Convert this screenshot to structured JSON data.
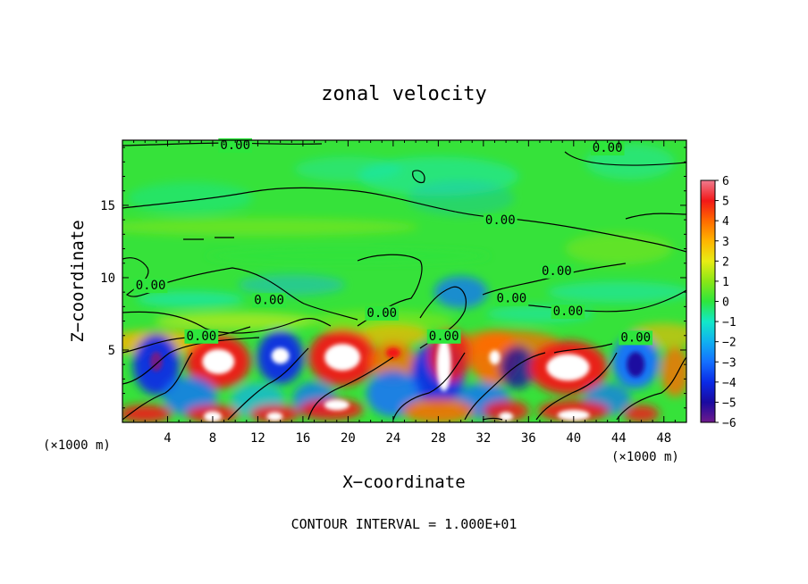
{
  "chart_data": {
    "type": "heatmap",
    "title": "zonal velocity",
    "xlabel": "X−coordinate",
    "ylabel": "Z−coordinate",
    "x_unit_left": "(×1000 m)",
    "x_unit_right": "(×1000 m)",
    "footer": "CONTOUR INTERVAL = 1.000E+01",
    "xlim": [
      0,
      50
    ],
    "ylim": [
      0,
      19.5
    ],
    "x_ticks": [
      "4",
      "8",
      "12",
      "16",
      "20",
      "24",
      "28",
      "32",
      "36",
      "40",
      "44",
      "48"
    ],
    "y_ticks": [
      "5",
      "10",
      "15"
    ],
    "colorbar": {
      "range": [
        -6,
        6
      ],
      "labels": [
        "6",
        "5",
        "4",
        "3",
        "2",
        "1",
        "0",
        "−1",
        "−2",
        "−3",
        "−4",
        "−5",
        "−6"
      ]
    },
    "contour_label": "0.00",
    "contour_labels": [
      {
        "text": "0.00",
        "x": 10,
        "z": 19.2
      },
      {
        "text": "0.00",
        "x": 43,
        "z": 19.0
      },
      {
        "text": "0.00",
        "x": 33.5,
        "z": 14.0
      },
      {
        "text": "0.00",
        "x": 2.5,
        "z": 9.5
      },
      {
        "text": "0.00",
        "x": 13,
        "z": 8.5
      },
      {
        "text": "0.00",
        "x": 38.5,
        "z": 10.5
      },
      {
        "text": "0.00",
        "x": 34.5,
        "z": 8.6
      },
      {
        "text": "0.00",
        "x": 39.5,
        "z": 7.7
      },
      {
        "text": "0.00",
        "x": 23,
        "z": 7.6
      },
      {
        "text": "0.00",
        "x": 7,
        "z": 6.0
      },
      {
        "text": "0.00",
        "x": 28.5,
        "z": 6.0
      },
      {
        "text": "0.00",
        "x": 45.5,
        "z": 5.9
      }
    ]
  },
  "colors": {
    "background": "#ffffff",
    "text": "#000000",
    "scale": [
      "#6e1a8c",
      "#1a0aa0",
      "#0a2ae6",
      "#1470ff",
      "#10b0f0",
      "#12e8c8",
      "#2ee63c",
      "#8ae616",
      "#e8ec14",
      "#ffb400",
      "#ff6a00",
      "#f21818",
      "#f07b8f"
    ]
  }
}
